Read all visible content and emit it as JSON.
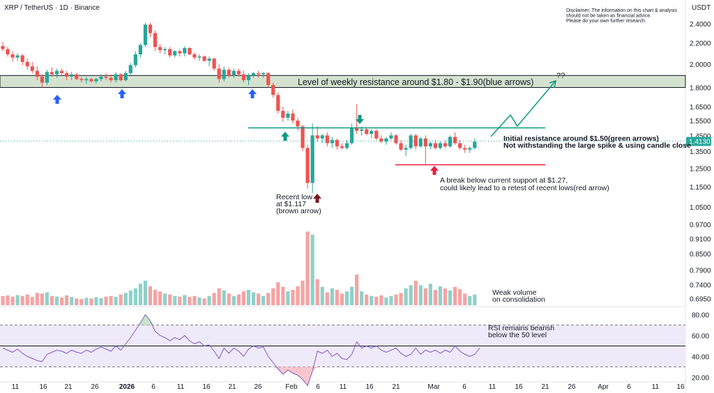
{
  "header": {
    "symbol_line": "XRP / TetherUS · 1D · Binance",
    "currency": "USDT",
    "disclaimer": [
      "Disclaimer: The information on this chart & analysis",
      "should not be taken as financial advice.",
      "Please do your own further research."
    ]
  },
  "colors": {
    "up": "#26a69a",
    "down": "#ef5350",
    "up_volume": "#8fd1c9",
    "down_volume": "#f5a3a3",
    "resistance_zone": "#d4e3d0",
    "green_line": "#089981",
    "red_line": "#e91e3c",
    "blue_arrow": "#2962ff",
    "brown_arrow": "#7b1a26",
    "rsi_line": "#7e57c2",
    "rsi_band": "#efeafa",
    "price_tag": "#26a69a"
  },
  "chart_data": [
    {
      "type": "candlestick",
      "title": "XRP / TetherUS · 1D · Binance",
      "y_axis_ticks": [
        "2.4000",
        "2.2000",
        "2.0000",
        "1.8000",
        "1.6500",
        "1.5500",
        "1.4500",
        "1.3500",
        "1.2500",
        "1.1500",
        "1.0500",
        "0.9700",
        "0.9100",
        "0.8500",
        "0.7900",
        "0.7400",
        "0.6950"
      ],
      "y_scale": "log",
      "x_axis_ticks": [
        "11",
        "16",
        "21",
        "26",
        "2026",
        "6",
        "11",
        "16",
        "21",
        "26",
        "Feb",
        "6",
        "11",
        "16",
        "21",
        "Mar",
        "6",
        "11",
        "16",
        "21",
        "26",
        "Apr",
        "6",
        "11",
        "16"
      ],
      "last_price": "1.4130",
      "candles": [
        {
          "o": 2.17,
          "h": 2.21,
          "l": 2.12,
          "c": 2.14
        },
        {
          "o": 2.14,
          "h": 2.16,
          "l": 2.07,
          "c": 2.09
        },
        {
          "o": 2.09,
          "h": 2.12,
          "l": 2.02,
          "c": 2.06
        },
        {
          "o": 2.06,
          "h": 2.1,
          "l": 2.03,
          "c": 2.08
        },
        {
          "o": 2.08,
          "h": 2.09,
          "l": 1.99,
          "c": 2.02
        },
        {
          "o": 2.02,
          "h": 2.05,
          "l": 1.95,
          "c": 1.98
        },
        {
          "o": 1.98,
          "h": 2.02,
          "l": 1.92,
          "c": 1.94
        },
        {
          "o": 1.94,
          "h": 1.98,
          "l": 1.86,
          "c": 1.89
        },
        {
          "o": 1.89,
          "h": 1.91,
          "l": 1.8,
          "c": 1.84
        },
        {
          "o": 1.84,
          "h": 1.95,
          "l": 1.82,
          "c": 1.93
        },
        {
          "o": 1.93,
          "h": 1.97,
          "l": 1.89,
          "c": 1.91
        },
        {
          "o": 1.91,
          "h": 1.96,
          "l": 1.88,
          "c": 1.94
        },
        {
          "o": 1.94,
          "h": 1.96,
          "l": 1.89,
          "c": 1.92
        },
        {
          "o": 1.92,
          "h": 1.94,
          "l": 1.86,
          "c": 1.89
        },
        {
          "o": 1.89,
          "h": 1.93,
          "l": 1.86,
          "c": 1.91
        },
        {
          "o": 1.91,
          "h": 1.92,
          "l": 1.86,
          "c": 1.87
        },
        {
          "o": 1.87,
          "h": 1.89,
          "l": 1.84,
          "c": 1.86
        },
        {
          "o": 1.86,
          "h": 1.89,
          "l": 1.83,
          "c": 1.87
        },
        {
          "o": 1.87,
          "h": 1.88,
          "l": 1.84,
          "c": 1.85
        },
        {
          "o": 1.85,
          "h": 1.88,
          "l": 1.83,
          "c": 1.87
        },
        {
          "o": 1.87,
          "h": 1.91,
          "l": 1.85,
          "c": 1.89
        },
        {
          "o": 1.89,
          "h": 1.92,
          "l": 1.86,
          "c": 1.88
        },
        {
          "o": 1.88,
          "h": 1.91,
          "l": 1.84,
          "c": 1.86
        },
        {
          "o": 1.86,
          "h": 1.93,
          "l": 1.84,
          "c": 1.91
        },
        {
          "o": 1.91,
          "h": 1.92,
          "l": 1.85,
          "c": 1.86
        },
        {
          "o": 1.86,
          "h": 1.94,
          "l": 1.85,
          "c": 1.92
        },
        {
          "o": 1.92,
          "h": 2.01,
          "l": 1.9,
          "c": 1.99
        },
        {
          "o": 1.99,
          "h": 2.12,
          "l": 1.97,
          "c": 2.09
        },
        {
          "o": 2.09,
          "h": 2.2,
          "l": 2.06,
          "c": 2.18
        },
        {
          "o": 2.18,
          "h": 2.41,
          "l": 2.16,
          "c": 2.39
        },
        {
          "o": 2.39,
          "h": 2.41,
          "l": 2.26,
          "c": 2.3
        },
        {
          "o": 2.3,
          "h": 2.33,
          "l": 2.12,
          "c": 2.16
        },
        {
          "o": 2.16,
          "h": 2.19,
          "l": 2.1,
          "c": 2.13
        },
        {
          "o": 2.13,
          "h": 2.16,
          "l": 2.09,
          "c": 2.14
        },
        {
          "o": 2.14,
          "h": 2.16,
          "l": 2.06,
          "c": 2.08
        },
        {
          "o": 2.08,
          "h": 2.13,
          "l": 2.06,
          "c": 2.12
        },
        {
          "o": 2.12,
          "h": 2.14,
          "l": 2.07,
          "c": 2.1
        },
        {
          "o": 2.1,
          "h": 2.17,
          "l": 2.07,
          "c": 2.15
        },
        {
          "o": 2.15,
          "h": 2.16,
          "l": 2.08,
          "c": 2.09
        },
        {
          "o": 2.09,
          "h": 2.11,
          "l": 2.04,
          "c": 2.06
        },
        {
          "o": 2.06,
          "h": 2.09,
          "l": 2.03,
          "c": 2.07
        },
        {
          "o": 2.07,
          "h": 2.08,
          "l": 2.02,
          "c": 2.03
        },
        {
          "o": 2.03,
          "h": 2.07,
          "l": 1.98,
          "c": 2.05
        },
        {
          "o": 2.05,
          "h": 2.06,
          "l": 1.94,
          "c": 1.96
        },
        {
          "o": 1.96,
          "h": 2.0,
          "l": 1.84,
          "c": 1.87
        },
        {
          "o": 1.87,
          "h": 1.98,
          "l": 1.85,
          "c": 1.95
        },
        {
          "o": 1.95,
          "h": 1.97,
          "l": 1.88,
          "c": 1.9
        },
        {
          "o": 1.9,
          "h": 1.96,
          "l": 1.88,
          "c": 1.94
        },
        {
          "o": 1.94,
          "h": 1.96,
          "l": 1.89,
          "c": 1.91
        },
        {
          "o": 1.91,
          "h": 1.94,
          "l": 1.84,
          "c": 1.86
        },
        {
          "o": 1.86,
          "h": 1.92,
          "l": 1.82,
          "c": 1.9
        },
        {
          "o": 1.9,
          "h": 1.93,
          "l": 1.88,
          "c": 1.92
        },
        {
          "o": 1.92,
          "h": 1.94,
          "l": 1.88,
          "c": 1.91
        },
        {
          "o": 1.91,
          "h": 1.93,
          "l": 1.88,
          "c": 1.92
        },
        {
          "o": 1.92,
          "h": 1.93,
          "l": 1.8,
          "c": 1.82
        },
        {
          "o": 1.82,
          "h": 1.84,
          "l": 1.72,
          "c": 1.74
        },
        {
          "o": 1.74,
          "h": 1.76,
          "l": 1.6,
          "c": 1.62
        },
        {
          "o": 1.62,
          "h": 1.65,
          "l": 1.54,
          "c": 1.57
        },
        {
          "o": 1.57,
          "h": 1.62,
          "l": 1.55,
          "c": 1.6
        },
        {
          "o": 1.6,
          "h": 1.63,
          "l": 1.53,
          "c": 1.55
        },
        {
          "o": 1.55,
          "h": 1.57,
          "l": 1.48,
          "c": 1.51
        },
        {
          "o": 1.51,
          "h": 1.52,
          "l": 1.35,
          "c": 1.37
        },
        {
          "o": 1.37,
          "h": 1.39,
          "l": 1.14,
          "c": 1.17
        },
        {
          "o": 1.17,
          "h": 1.53,
          "l": 1.117,
          "c": 1.45
        },
        {
          "o": 1.45,
          "h": 1.51,
          "l": 1.41,
          "c": 1.43
        },
        {
          "o": 1.43,
          "h": 1.46,
          "l": 1.4,
          "c": 1.45
        },
        {
          "o": 1.45,
          "h": 1.47,
          "l": 1.38,
          "c": 1.4
        },
        {
          "o": 1.4,
          "h": 1.44,
          "l": 1.37,
          "c": 1.42
        },
        {
          "o": 1.42,
          "h": 1.43,
          "l": 1.36,
          "c": 1.38
        },
        {
          "o": 1.38,
          "h": 1.4,
          "l": 1.36,
          "c": 1.37
        },
        {
          "o": 1.37,
          "h": 1.42,
          "l": 1.36,
          "c": 1.4
        },
        {
          "o": 1.4,
          "h": 1.53,
          "l": 1.39,
          "c": 1.5
        },
        {
          "o": 1.5,
          "h": 1.67,
          "l": 1.46,
          "c": 1.48
        },
        {
          "o": 1.48,
          "h": 1.51,
          "l": 1.45,
          "c": 1.49
        },
        {
          "o": 1.49,
          "h": 1.5,
          "l": 1.45,
          "c": 1.46
        },
        {
          "o": 1.46,
          "h": 1.49,
          "l": 1.43,
          "c": 1.48
        },
        {
          "o": 1.48,
          "h": 1.49,
          "l": 1.42,
          "c": 1.43
        },
        {
          "o": 1.43,
          "h": 1.45,
          "l": 1.4,
          "c": 1.41
        },
        {
          "o": 1.41,
          "h": 1.44,
          "l": 1.39,
          "c": 1.43
        },
        {
          "o": 1.43,
          "h": 1.47,
          "l": 1.42,
          "c": 1.45
        },
        {
          "o": 1.45,
          "h": 1.46,
          "l": 1.39,
          "c": 1.4
        },
        {
          "o": 1.4,
          "h": 1.42,
          "l": 1.35,
          "c": 1.36
        },
        {
          "o": 1.36,
          "h": 1.39,
          "l": 1.32,
          "c": 1.37
        },
        {
          "o": 1.37,
          "h": 1.46,
          "l": 1.36,
          "c": 1.45
        },
        {
          "o": 1.45,
          "h": 1.46,
          "l": 1.36,
          "c": 1.38
        },
        {
          "o": 1.38,
          "h": 1.44,
          "l": 1.37,
          "c": 1.43
        },
        {
          "o": 1.43,
          "h": 1.45,
          "l": 1.27,
          "c": 1.38
        },
        {
          "o": 1.38,
          "h": 1.41,
          "l": 1.36,
          "c": 1.4
        },
        {
          "o": 1.4,
          "h": 1.42,
          "l": 1.36,
          "c": 1.37
        },
        {
          "o": 1.37,
          "h": 1.41,
          "l": 1.36,
          "c": 1.4
        },
        {
          "o": 1.4,
          "h": 1.42,
          "l": 1.37,
          "c": 1.38
        },
        {
          "o": 1.38,
          "h": 1.45,
          "l": 1.37,
          "c": 1.44
        },
        {
          "o": 1.44,
          "h": 1.47,
          "l": 1.39,
          "c": 1.4
        },
        {
          "o": 1.4,
          "h": 1.42,
          "l": 1.36,
          "c": 1.37
        },
        {
          "o": 1.37,
          "h": 1.39,
          "l": 1.34,
          "c": 1.36
        },
        {
          "o": 1.36,
          "h": 1.38,
          "l": 1.34,
          "c": 1.37
        },
        {
          "o": 1.37,
          "h": 1.43,
          "l": 1.36,
          "c": 1.41
        }
      ],
      "volume": [
        0.3,
        0.32,
        0.28,
        0.33,
        0.3,
        0.35,
        0.27,
        0.4,
        0.38,
        0.42,
        0.3,
        0.28,
        0.25,
        0.32,
        0.27,
        0.22,
        0.2,
        0.24,
        0.22,
        0.26,
        0.23,
        0.28,
        0.3,
        0.27,
        0.35,
        0.4,
        0.48,
        0.55,
        0.7,
        0.8,
        0.62,
        0.5,
        0.45,
        0.38,
        0.35,
        0.3,
        0.28,
        0.33,
        0.27,
        0.3,
        0.25,
        0.22,
        0.3,
        0.4,
        0.55,
        0.48,
        0.38,
        0.3,
        0.35,
        0.45,
        0.5,
        0.42,
        0.38,
        0.3,
        0.4,
        0.55,
        0.75,
        0.6,
        0.45,
        0.5,
        0.62,
        0.8,
        2.4,
        2.3,
        0.85,
        0.6,
        0.42,
        0.55,
        0.5,
        0.38,
        0.45,
        0.6,
        1.0,
        0.45,
        0.35,
        0.3,
        0.28,
        0.32,
        0.25,
        0.3,
        0.35,
        0.4,
        0.55,
        0.65,
        0.8,
        0.65,
        0.55,
        0.7,
        0.5,
        0.62,
        0.55,
        0.48,
        0.6,
        0.52,
        0.38,
        0.3,
        0.35,
        0.45
      ],
      "annotations": [
        "Level of weekly resistance around $1.80 - $1.90(blue arrows)",
        "Initial resistance around $1.50(green arrows)",
        "Not withstanding the large spike & using candle close",
        "A break below current support at $1.27,",
        "could likely lead to a retest of recent lows(red arrow)",
        "Recent low",
        "at $1.117",
        "(brown arrow)",
        "Weak volume",
        "on consolidation",
        "??"
      ],
      "levels": {
        "resistance_zone": [
          1.8,
          1.9
        ],
        "initial_resistance": 1.5,
        "support": 1.27,
        "recent_low": 1.117
      }
    },
    {
      "type": "line",
      "y_axis_ticks": [
        "80.00",
        "60.00",
        "40.00",
        "20.00"
      ],
      "ylim": [
        15,
        87
      ],
      "levels": [
        70,
        50,
        30
      ],
      "annotations": [
        "RSI remains bearish",
        "below the 50 level"
      ],
      "values": [
        48,
        46,
        44,
        47,
        43,
        40,
        38,
        36,
        35,
        42,
        44,
        46,
        45,
        43,
        46,
        44,
        43,
        46,
        44,
        47,
        49,
        47,
        45,
        50,
        46,
        52,
        58,
        65,
        72,
        80,
        74,
        64,
        60,
        58,
        55,
        58,
        56,
        60,
        55,
        52,
        54,
        50,
        51,
        45,
        38,
        48,
        43,
        48,
        45,
        40,
        47,
        50,
        48,
        49,
        40,
        34,
        28,
        23,
        27,
        24,
        22,
        18,
        12,
        26,
        45,
        43,
        46,
        40,
        43,
        38,
        37,
        42,
        54,
        48,
        50,
        48,
        50,
        46,
        44,
        46,
        48,
        43,
        40,
        42,
        48,
        42,
        46,
        44,
        46,
        43,
        46,
        44,
        50,
        45,
        42,
        40,
        42,
        48
      ]
    }
  ],
  "axis_labels": {
    "price_ticks": [
      "2.4000",
      "2.2000",
      "2.0000",
      "1.8000",
      "1.6500",
      "1.5500",
      "1.4500",
      "1.3500",
      "1.2500",
      "1.1500",
      "1.0500",
      "0.9700",
      "0.9100",
      "0.8500",
      "0.7900",
      "0.7400",
      "0.6950"
    ],
    "rsi_ticks": [
      "80.00",
      "60.00",
      "40.00",
      "20.00"
    ],
    "time_ticks": [
      "11",
      "16",
      "21",
      "26",
      "2026",
      "6",
      "11",
      "16",
      "21",
      "26",
      "Feb",
      "6",
      "11",
      "16",
      "21",
      "Mar",
      "6",
      "11",
      "16",
      "21",
      "26",
      "Apr",
      "6",
      "11",
      "16"
    ]
  }
}
